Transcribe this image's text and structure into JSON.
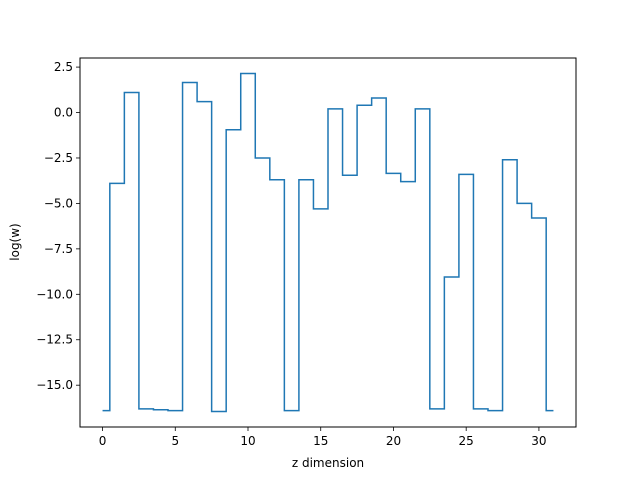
{
  "chart_data": {
    "type": "line",
    "step": "mid",
    "xlabel": "z dimension",
    "ylabel": "log(w)",
    "xlim": [
      -1.55,
      32.55
    ],
    "ylim": [
      -17.3,
      3.0
    ],
    "xticks": [
      0,
      5,
      10,
      15,
      20,
      25,
      30
    ],
    "yticks": [
      2.5,
      0.0,
      -2.5,
      -5.0,
      -7.5,
      -10.0,
      -12.5,
      -15.0
    ],
    "xtick_labels": [
      "0",
      "5",
      "10",
      "15",
      "20",
      "25",
      "30"
    ],
    "ytick_labels": [
      "2.5",
      "0.0",
      "−2.5",
      "−5.0",
      "−7.5",
      "−10.0",
      "−12.5",
      "−15.0"
    ],
    "line_color": "#1f77b4",
    "grid": false,
    "series": [
      {
        "x": [
          0,
          1,
          2,
          3,
          4,
          5,
          6,
          7,
          8,
          9,
          10,
          11,
          12,
          13,
          14,
          15,
          16,
          17,
          18,
          19,
          20,
          21,
          22,
          23,
          24,
          25,
          26,
          27,
          28,
          29,
          30,
          31
        ],
        "values": [
          -16.4,
          -3.9,
          1.1,
          -16.3,
          -16.35,
          -16.4,
          1.65,
          0.6,
          -16.45,
          -0.95,
          2.15,
          -2.5,
          -3.7,
          -16.4,
          -3.7,
          -5.3,
          0.2,
          -3.45,
          0.4,
          0.8,
          -3.35,
          -3.8,
          0.2,
          -16.3,
          -9.05,
          -3.4,
          -16.3,
          -16.4,
          -2.6,
          -5.0,
          -5.8,
          -16.4
        ]
      }
    ]
  }
}
